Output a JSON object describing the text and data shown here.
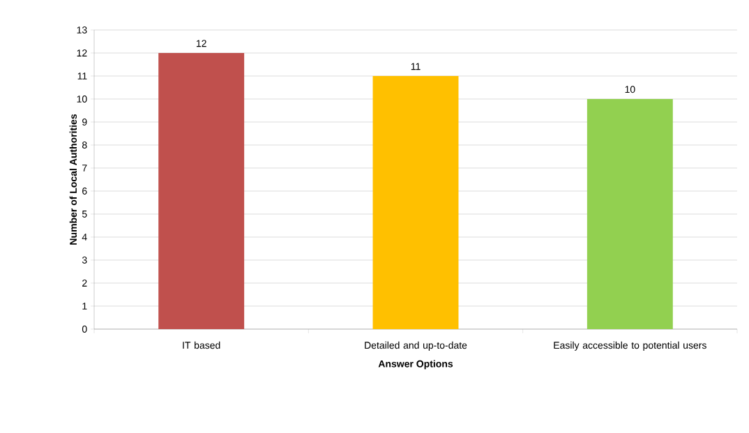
{
  "chart_data": {
    "type": "bar",
    "xlabel": "Answer Options",
    "ylabel": "Number of Local Authorities",
    "categories": [
      "IT based",
      "Detailed and up-to-date",
      "Easily accessible to potential users"
    ],
    "values": [
      12,
      11,
      10
    ],
    "colors": [
      "#c0504d",
      "#ffc000",
      "#92d050"
    ],
    "ylim": [
      0,
      13
    ],
    "yticks": [
      0,
      1,
      2,
      3,
      4,
      5,
      6,
      7,
      8,
      9,
      10,
      11,
      12,
      13
    ],
    "grid": "y",
    "data_labels": true
  }
}
